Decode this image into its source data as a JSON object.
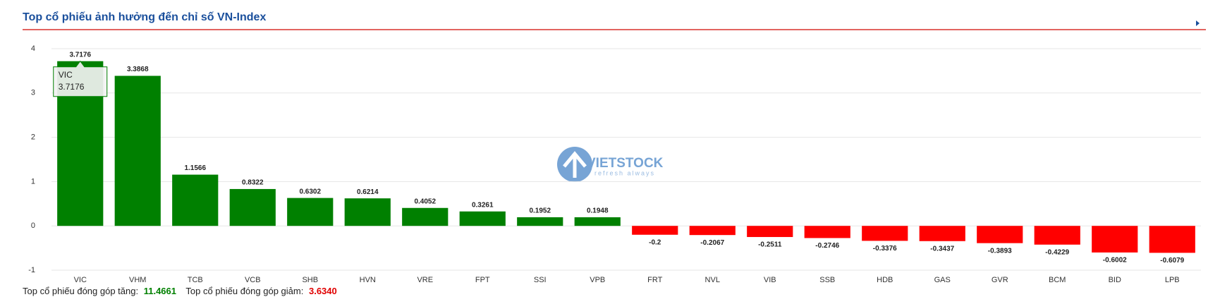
{
  "chart_data": {
    "type": "bar",
    "title": "Top cổ phiếu ảnh hưởng đến chỉ số VN-Index",
    "categories": [
      "VIC",
      "VHM",
      "TCB",
      "VCB",
      "SHB",
      "HVN",
      "VRE",
      "FPT",
      "SSI",
      "VPB",
      "FRT",
      "NVL",
      "VIB",
      "SSB",
      "HDB",
      "GAS",
      "GVR",
      "BCM",
      "BID",
      "LPB"
    ],
    "values": [
      3.7176,
      3.3868,
      1.1566,
      0.8322,
      0.6302,
      0.6214,
      0.4052,
      0.3261,
      0.1952,
      0.1948,
      -0.2,
      -0.2067,
      -0.2511,
      -0.2746,
      -0.3376,
      -0.3437,
      -0.3893,
      -0.4229,
      -0.6002,
      -0.6079
    ],
    "positive_color": "#008000",
    "negative_color": "#ff0000",
    "ylim": [
      -1,
      4
    ],
    "yticks": [
      -1,
      0,
      1,
      2,
      3,
      4
    ],
    "grid": true
  },
  "watermark": {
    "brand": "VIETSTOCK",
    "slogan": "refresh always"
  },
  "summary": {
    "up_label": "Top cổ phiếu đóng góp tăng:",
    "up_value": "11.4661",
    "down_label": "Top cổ phiếu đóng góp giảm:",
    "down_value": "3.6340"
  }
}
